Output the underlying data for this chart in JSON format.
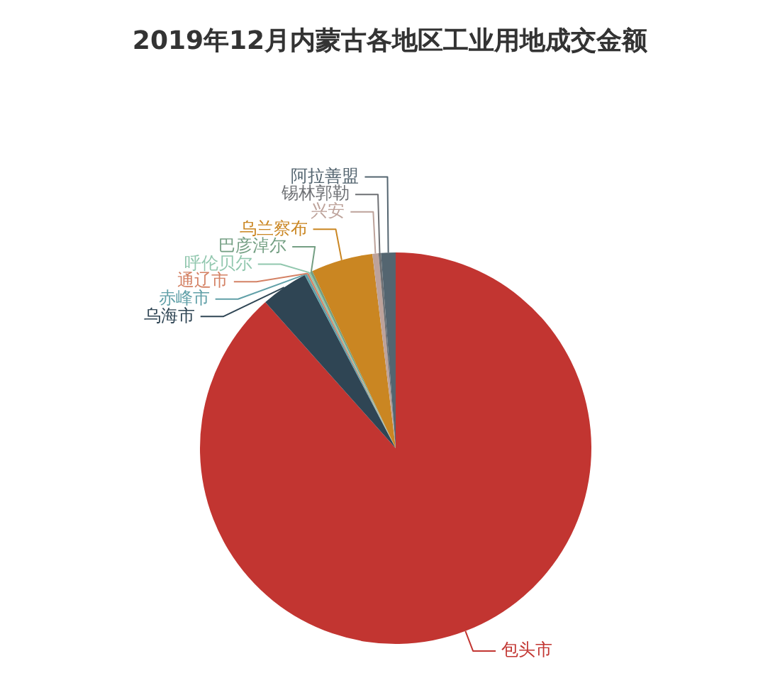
{
  "chart_data": {
    "type": "pie",
    "title": "2019年12月内蒙古各地区工业用地成交金额",
    "categories": [
      "包头市",
      "乌海市",
      "赤峰市",
      "通辽市",
      "呼伦贝尔",
      "巴彦淖尔",
      "乌兰察布",
      "兴安",
      "锡林郭勒",
      "阿拉善盟"
    ],
    "values": [
      88.4,
      3.9,
      0.2,
      0.15,
      0.15,
      0.2,
      5.1,
      0.5,
      0.2,
      1.2
    ],
    "colors": [
      "#c23531",
      "#2f4554",
      "#61a0a8",
      "#d48265",
      "#91c7ae",
      "#749f83",
      "#ca8622",
      "#bda29a",
      "#6e7074",
      "#546570"
    ],
    "legend": false
  }
}
